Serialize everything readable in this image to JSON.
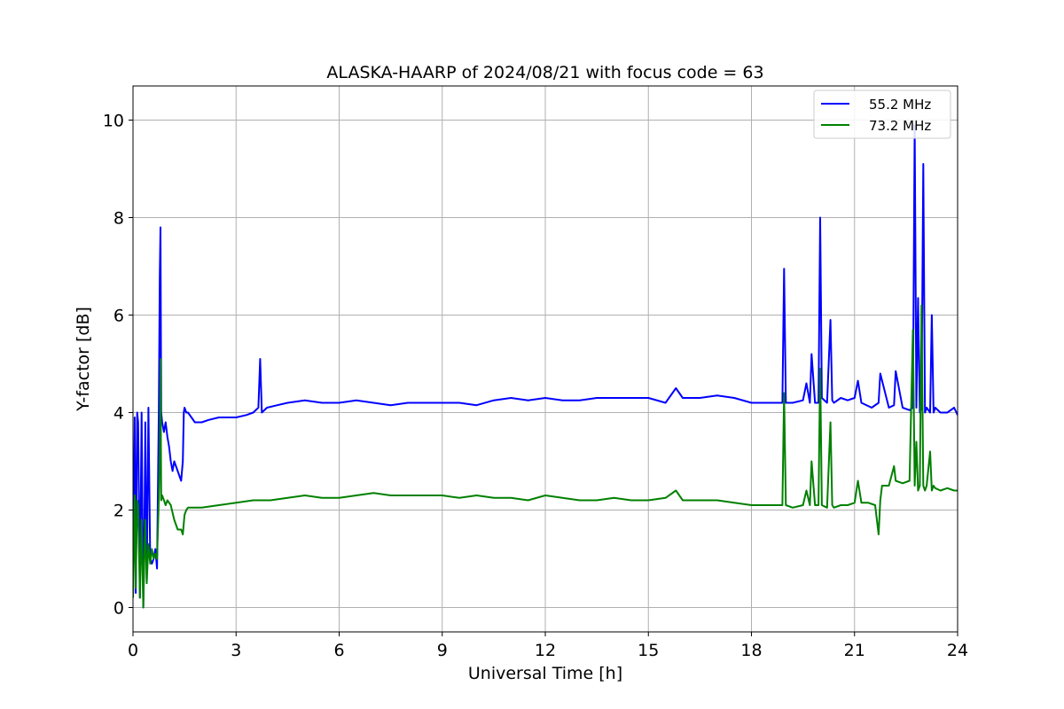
{
  "chart_data": {
    "type": "line",
    "title": "ALASKA-HAARP of 2024/08/21 with focus code = 63",
    "xlabel": "Universal Time [h]",
    "ylabel": "Y-factor [dB]",
    "xlim": [
      0,
      24
    ],
    "ylim": [
      -0.5,
      10.7
    ],
    "xticks": [
      0,
      3,
      6,
      9,
      12,
      15,
      18,
      21,
      24
    ],
    "yticks": [
      0,
      2,
      4,
      6,
      8,
      10
    ],
    "grid": true,
    "legend_position": "top-right",
    "series": [
      {
        "name": "55.2 MHz",
        "color": "#0000ff",
        "x": [
          0,
          0.05,
          0.08,
          0.12,
          0.15,
          0.2,
          0.25,
          0.3,
          0.33,
          0.36,
          0.4,
          0.45,
          0.5,
          0.55,
          0.6,
          0.65,
          0.7,
          0.75,
          0.78,
          0.8,
          0.82,
          0.85,
          0.9,
          0.95,
          1.0,
          1.05,
          1.1,
          1.15,
          1.2,
          1.3,
          1.4,
          1.45,
          1.48,
          1.5,
          1.55,
          1.6,
          1.7,
          1.8,
          2.0,
          2.2,
          2.5,
          2.8,
          3.0,
          3.3,
          3.5,
          3.65,
          3.7,
          3.75,
          3.9,
          4.2,
          4.5,
          5.0,
          5.5,
          6.0,
          6.5,
          7.0,
          7.5,
          8.0,
          8.5,
          9.0,
          9.5,
          10.0,
          10.5,
          11.0,
          11.5,
          12.0,
          12.5,
          13.0,
          13.5,
          14.0,
          14.5,
          15.0,
          15.5,
          15.8,
          16.0,
          16.5,
          17.0,
          17.5,
          18.0,
          18.5,
          18.9,
          18.95,
          19.0,
          19.2,
          19.5,
          19.6,
          19.7,
          19.75,
          19.85,
          19.95,
          20.0,
          20.05,
          20.2,
          20.3,
          20.35,
          20.4,
          20.6,
          20.8,
          21.0,
          21.1,
          21.2,
          21.5,
          21.7,
          21.75,
          22.0,
          22.15,
          22.2,
          22.4,
          22.6,
          22.7,
          22.75,
          22.8,
          22.85,
          22.9,
          22.95,
          23.0,
          23.05,
          23.1,
          23.2,
          23.25,
          23.3,
          23.35,
          23.5,
          23.7,
          23.9,
          24.0
        ],
        "values": [
          0.2,
          3.9,
          0.3,
          4.0,
          3.8,
          0.2,
          4.0,
          0.0,
          1.5,
          3.8,
          0.5,
          4.1,
          1.0,
          0.9,
          1.0,
          1.2,
          0.8,
          4.0,
          6.8,
          7.8,
          4.0,
          3.8,
          3.6,
          3.8,
          3.5,
          3.3,
          3.0,
          2.8,
          3.0,
          2.8,
          2.6,
          3.0,
          4.0,
          4.1,
          4.0,
          4.0,
          3.9,
          3.8,
          3.8,
          3.85,
          3.9,
          3.9,
          3.9,
          3.95,
          4.0,
          4.1,
          5.1,
          4.0,
          4.1,
          4.15,
          4.2,
          4.25,
          4.2,
          4.2,
          4.25,
          4.2,
          4.15,
          4.2,
          4.2,
          4.2,
          4.2,
          4.15,
          4.25,
          4.3,
          4.25,
          4.3,
          4.25,
          4.25,
          4.3,
          4.3,
          4.3,
          4.3,
          4.2,
          4.5,
          4.3,
          4.3,
          4.35,
          4.3,
          4.2,
          4.2,
          4.2,
          6.95,
          4.2,
          4.2,
          4.25,
          4.6,
          4.2,
          5.2,
          4.2,
          4.2,
          8.0,
          4.3,
          4.2,
          5.9,
          4.25,
          4.2,
          4.3,
          4.25,
          4.3,
          4.65,
          4.2,
          4.1,
          4.2,
          4.8,
          4.1,
          4.15,
          4.85,
          4.1,
          4.05,
          4.1,
          9.9,
          4.1,
          6.35,
          4.0,
          4.1,
          9.1,
          4.0,
          4.1,
          4.0,
          6.0,
          4.0,
          4.1,
          4.0,
          4.0,
          4.1,
          3.95
        ]
      },
      {
        "name": "73.2 MHz",
        "color": "#008000",
        "x": [
          0,
          0.05,
          0.08,
          0.12,
          0.15,
          0.2,
          0.25,
          0.3,
          0.33,
          0.36,
          0.4,
          0.45,
          0.5,
          0.55,
          0.6,
          0.65,
          0.7,
          0.75,
          0.78,
          0.8,
          0.82,
          0.85,
          0.9,
          0.95,
          1.0,
          1.1,
          1.2,
          1.3,
          1.4,
          1.45,
          1.5,
          1.55,
          1.6,
          1.8,
          2.0,
          2.5,
          3.0,
          3.5,
          4.0,
          4.5,
          5.0,
          5.5,
          6.0,
          6.5,
          7.0,
          7.5,
          8.0,
          8.5,
          9.0,
          9.5,
          10.0,
          10.5,
          11.0,
          11.5,
          12.0,
          12.5,
          13.0,
          13.5,
          14.0,
          14.5,
          15.0,
          15.5,
          15.8,
          16.0,
          16.5,
          17.0,
          17.5,
          18.0,
          18.5,
          18.9,
          18.95,
          19.0,
          19.2,
          19.5,
          19.6,
          19.7,
          19.75,
          19.85,
          19.95,
          20.0,
          20.05,
          20.2,
          20.3,
          20.35,
          20.4,
          20.6,
          20.8,
          21.0,
          21.1,
          21.2,
          21.4,
          21.6,
          21.7,
          21.75,
          21.8,
          22.0,
          22.15,
          22.2,
          22.4,
          22.6,
          22.7,
          22.75,
          22.8,
          22.85,
          22.9,
          22.95,
          23.0,
          23.05,
          23.1,
          23.2,
          23.25,
          23.3,
          23.35,
          23.5,
          23.7,
          23.9,
          24.0
        ],
        "values": [
          0.2,
          2.3,
          0.4,
          2.2,
          2.1,
          0.2,
          1.8,
          0.0,
          1.0,
          1.8,
          0.5,
          1.3,
          0.9,
          1.2,
          1.0,
          1.1,
          1.0,
          2.2,
          3.2,
          5.1,
          2.2,
          2.3,
          2.2,
          2.1,
          2.2,
          2.1,
          1.8,
          1.6,
          1.6,
          1.5,
          1.9,
          2.0,
          2.05,
          2.05,
          2.05,
          2.1,
          2.15,
          2.2,
          2.2,
          2.25,
          2.3,
          2.25,
          2.25,
          2.3,
          2.35,
          2.3,
          2.3,
          2.3,
          2.3,
          2.25,
          2.3,
          2.25,
          2.25,
          2.2,
          2.3,
          2.25,
          2.2,
          2.2,
          2.25,
          2.2,
          2.2,
          2.25,
          2.4,
          2.2,
          2.2,
          2.2,
          2.15,
          2.1,
          2.1,
          2.1,
          4.4,
          2.1,
          2.05,
          2.1,
          2.4,
          2.1,
          3.0,
          2.1,
          2.1,
          4.9,
          2.1,
          2.05,
          3.8,
          2.1,
          2.05,
          2.1,
          2.1,
          2.15,
          2.6,
          2.15,
          2.15,
          2.1,
          1.5,
          2.2,
          2.5,
          2.5,
          2.9,
          2.6,
          2.55,
          2.6,
          5.7,
          2.5,
          3.4,
          2.4,
          2.5,
          6.2,
          2.5,
          2.4,
          2.5,
          3.2,
          2.4,
          2.5,
          2.45,
          2.4,
          2.45,
          2.4,
          2.4
        ]
      }
    ]
  }
}
